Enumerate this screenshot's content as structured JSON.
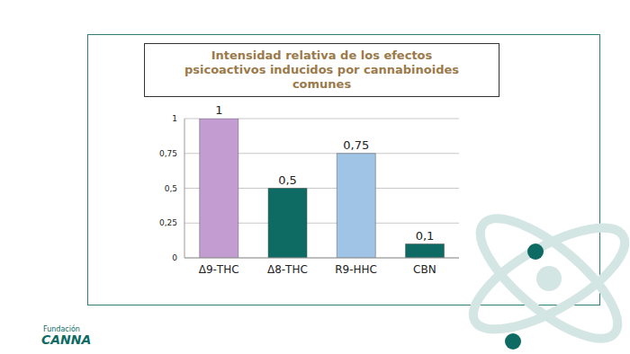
{
  "chart_data": {
    "type": "bar",
    "title": "Intensidad relativa de los efectos psicoactivos inducidos por cannabinoides comunes",
    "categories": [
      "Δ9-THC",
      "Δ8-THC",
      "R9-HHC",
      "CBN"
    ],
    "values": [
      1,
      0.5,
      0.75,
      0.1
    ],
    "value_labels": [
      "1",
      "0,5",
      "0,75",
      "0,1"
    ],
    "colors": [
      "#c39dd1",
      "#0e6b63",
      "#9fc4e6",
      "#0e6b63"
    ],
    "ylim": [
      0,
      1
    ],
    "yticks": [
      0,
      {
        "value": 0.25,
        "label": "0,25"
      },
      {
        "value": 0.5,
        "label": "0,5"
      },
      {
        "value": 0.75,
        "label": "0,75"
      },
      1
    ],
    "grid": true,
    "data_labels": true,
    "annotations": [
      "Fundación",
      "CANNA"
    ]
  }
}
